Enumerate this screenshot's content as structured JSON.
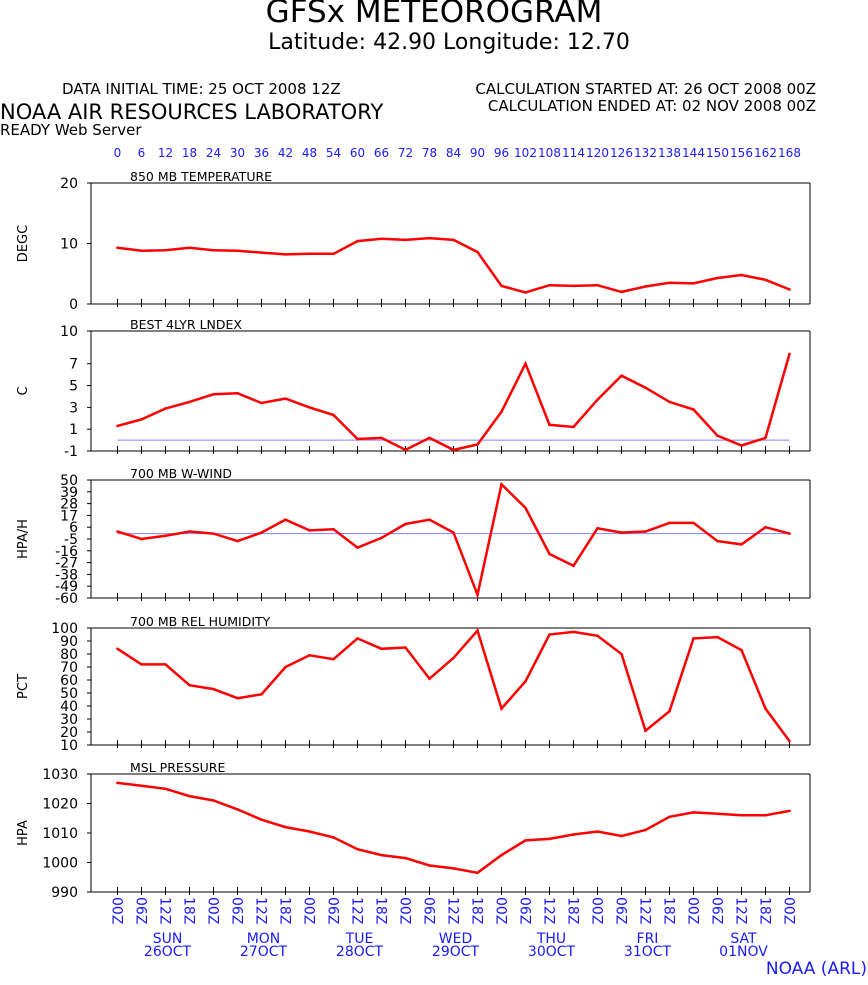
{
  "header": {
    "title": "GFSx METEOROGRAM",
    "location": "Latitude: 42.90 Longitude:  12.70",
    "data_initial_time": "DATA INITIAL TIME: 25 OCT 2008 12Z",
    "calculation_started": "CALCULATION STARTED AT: 26 OCT 2008 00Z",
    "calculation_ended": "CALCULATION ENDED AT: 02 NOV 2008 00Z",
    "laboratory": "NOAA AIR RESOURCES LABORATORY",
    "server": "READY Web Server"
  },
  "footer": {
    "credit": "NOAA (ARL)"
  },
  "colors": {
    "series": "#ff0000",
    "reference": "#8080ff",
    "axis_labels": "#1a1aff"
  },
  "chart_data": {
    "type": "line",
    "forecast_hours": [
      0,
      6,
      12,
      18,
      24,
      30,
      36,
      42,
      48,
      54,
      60,
      66,
      72,
      78,
      84,
      90,
      96,
      102,
      108,
      114,
      120,
      126,
      132,
      138,
      144,
      150,
      156,
      162,
      168
    ],
    "hour_labels": [
      "0",
      "6",
      "12",
      "18",
      "24",
      "30",
      "36",
      "42",
      "48",
      "54",
      "60",
      "66",
      "72",
      "78",
      "84",
      "90",
      "96",
      "102",
      "108",
      "114",
      "120",
      "126",
      "132",
      "138",
      "144",
      "150",
      "156",
      "162",
      "168"
    ],
    "time_labels": [
      "00Z",
      "06Z",
      "12Z",
      "18Z",
      "00Z",
      "06Z",
      "12Z",
      "18Z",
      "00Z",
      "06Z",
      "12Z",
      "18Z",
      "00Z",
      "06Z",
      "12Z",
      "18Z",
      "00Z",
      "06Z",
      "12Z",
      "18Z",
      "00Z",
      "06Z",
      "12Z",
      "18Z",
      "00Z",
      "06Z",
      "12Z",
      "18Z",
      "00Z"
    ],
    "days": [
      {
        "name": "SUN",
        "date": "26OCT",
        "hour": 12
      },
      {
        "name": "MON",
        "date": "27OCT",
        "hour": 36
      },
      {
        "name": "TUE",
        "date": "28OCT",
        "hour": 60
      },
      {
        "name": "WED",
        "date": "29OCT",
        "hour": 84
      },
      {
        "name": "THU",
        "date": "30OCT",
        "hour": 108
      },
      {
        "name": "FRI",
        "date": "31OCT",
        "hour": 132
      },
      {
        "name": "SAT",
        "date": "01NOV",
        "hour": 156
      }
    ],
    "panels": [
      {
        "id": "temperature",
        "title": "850 MB  TEMPERATURE",
        "ylabel": "DEGC",
        "ylim": [
          0,
          20
        ],
        "yticks": [
          0,
          10,
          20
        ],
        "values": [
          9.3,
          8.8,
          8.9,
          9.3,
          8.9,
          8.8,
          8.5,
          8.2,
          8.3,
          8.3,
          10.4,
          10.8,
          10.6,
          10.9,
          10.6,
          8.6,
          3.0,
          1.9,
          3.1,
          3.0,
          3.1,
          2.0,
          2.9,
          3.5,
          3.4,
          4.3,
          4.8,
          4.0,
          2.4
        ]
      },
      {
        "id": "lifted-index",
        "title": "BEST 4LYR LNDEX",
        "ylabel": "C",
        "ylim": [
          -1,
          10
        ],
        "yticks": [
          -1,
          1,
          3,
          5,
          7,
          10
        ],
        "reference": 0,
        "values": [
          1.3,
          1.9,
          2.9,
          3.5,
          4.2,
          4.3,
          3.4,
          3.8,
          3.0,
          2.3,
          0.1,
          0.2,
          -0.9,
          0.2,
          -0.9,
          -0.4,
          2.6,
          7.0,
          1.4,
          1.2,
          3.7,
          5.9,
          4.8,
          3.5,
          2.8,
          0.4,
          -0.5,
          0.2,
          7.9
        ]
      },
      {
        "id": "w-wind",
        "title": "700 MB  W-WIND",
        "ylabel": "HPA/H",
        "ylim": [
          -60,
          50
        ],
        "yticks": [
          -60,
          -49,
          -38,
          -27,
          -16,
          -5,
          6,
          17,
          28,
          39,
          50
        ],
        "reference": 0,
        "values": [
          2,
          -5,
          -2,
          2,
          0,
          -7,
          1,
          13,
          3,
          4,
          -13,
          -4,
          9,
          13,
          1,
          -57,
          46,
          24,
          -19,
          -30,
          5,
          1,
          2,
          10,
          10,
          -7,
          -10,
          6,
          0
        ]
      },
      {
        "id": "humidity",
        "title": "700 MB  REL HUMIDITY",
        "ylabel": "PCT",
        "ylim": [
          10,
          100
        ],
        "yticks": [
          10,
          20,
          30,
          40,
          50,
          60,
          70,
          80,
          90,
          100
        ],
        "values": [
          84,
          72,
          72,
          56,
          53,
          46,
          49,
          70,
          79,
          76,
          92,
          84,
          85,
          61,
          77,
          98,
          38,
          59,
          95,
          97,
          94,
          80,
          21,
          36,
          92,
          93,
          83,
          38,
          13
        ]
      },
      {
        "id": "pressure",
        "title": "MSL PRESSURE",
        "ylabel": "HPA",
        "ylim": [
          990,
          1030
        ],
        "yticks": [
          990,
          1000,
          1010,
          1020,
          1030
        ],
        "values": [
          1027,
          1026,
          1025,
          1022.5,
          1021,
          1018,
          1014.5,
          1012,
          1010.5,
          1008.5,
          1004.5,
          1002.5,
          1001.5,
          999,
          998,
          996.5,
          1002.5,
          1007.5,
          1008,
          1009.5,
          1010.5,
          1009,
          1011,
          1015.5,
          1017,
          1016.5,
          1016,
          1016,
          1017.5
        ]
      }
    ]
  }
}
